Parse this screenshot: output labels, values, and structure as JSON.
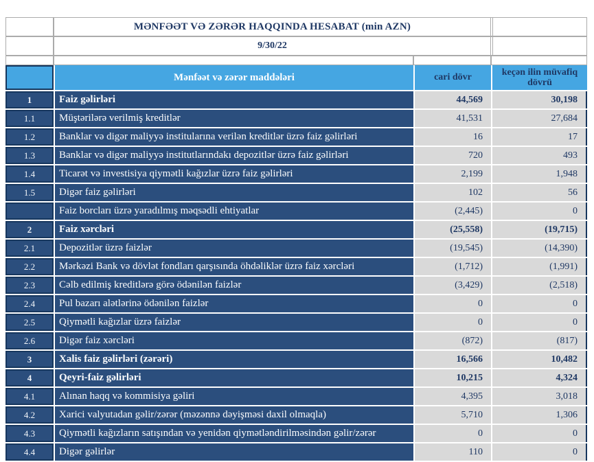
{
  "report": {
    "title": "MƏNFƏƏT VƏ ZƏRƏR HAQQINDA HESABAT (min AZN)",
    "date": "9/30/22"
  },
  "columns": {
    "items_header": "Mənfəət və zərər maddələri",
    "current_header": "cari dövr",
    "previous_header": "keçən ilin müvafiq dövrü"
  },
  "colors": {
    "header_blue": "#45A6E2",
    "row_navy": "#2B4E7D",
    "cell_gray": "#D9D9D9",
    "text_navy": "#1F3864",
    "border_dark": "#17375E",
    "border_gray": "#ABABAB"
  },
  "rows": [
    {
      "no": "1",
      "label": "Faiz  gəlirləri",
      "current": "44,569",
      "previous": "30,198",
      "bold": true
    },
    {
      "no": "1.1",
      "label": "Müştərilərə verilmiş kreditlər",
      "current": "41,531",
      "previous": "27,684",
      "bold": false
    },
    {
      "no": "1.2",
      "label": "Banklar və digər maliyyə institularına verilən kreditlər üzrə faiz gəlirləri",
      "current": "16",
      "previous": "17",
      "bold": false
    },
    {
      "no": "1.3",
      "label": "Banklar və digər maliyyə institutlarındakı depozitlər üzrə faiz gəlirləri",
      "current": "720",
      "previous": "493",
      "bold": false
    },
    {
      "no": "1.4",
      "label": "Ticarət və investisiya qiymətli kağızlar üzrə faiz gəlirləri",
      "current": "2,199",
      "previous": "1,948",
      "bold": false
    },
    {
      "no": "1.5",
      "label": "Digər faiz gəlirləri",
      "current": "102",
      "previous": "56",
      "bold": false
    },
    {
      "no": "",
      "label": "Faiz borcları üzrə yaradılmış məqsədli ehtiyatlar",
      "current": "(2,445)",
      "previous": "0",
      "bold": false
    },
    {
      "no": "2",
      "label": "Faiz xərcləri",
      "current": "(25,558)",
      "previous": "(19,715)",
      "bold": true
    },
    {
      "no": "2.1",
      "label": "Depozitlər üzrə faizlər",
      "current": "(19,545)",
      "previous": "(14,390)",
      "bold": false
    },
    {
      "no": "2.2",
      "label": "Mərkəzi Bank və dövlət fondları qarşısında öhdəliklər üzrə faiz xərcləri",
      "current": "(1,712)",
      "previous": "(1,991)",
      "bold": false
    },
    {
      "no": "2.3",
      "label": "Cəlb edilmiş kreditlərə görə ödənilən faizlər",
      "current": "(3,429)",
      "previous": "(2,518)",
      "bold": false
    },
    {
      "no": "2.4",
      "label": "Pul bazarı alətlərinə ödənilən faizlər",
      "current": "0",
      "previous": "0",
      "bold": false
    },
    {
      "no": "2.5",
      "label": "Qiymətli kağızlar üzrə faizlər",
      "current": "0",
      "previous": "0",
      "bold": false
    },
    {
      "no": "2.6",
      "label": "Digər faiz xərcləri",
      "current": "(872)",
      "previous": "(817)",
      "bold": false
    },
    {
      "no": "3",
      "label": "Xalis faiz gəlirləri (zərəri)",
      "current": "16,566",
      "previous": "10,482",
      "bold": true
    },
    {
      "no": "4",
      "label": "Qeyri-faiz gəlirləri",
      "current": "10,215",
      "previous": "4,324",
      "bold": true
    },
    {
      "no": "4.1",
      "label": "Alınan haqq və kommisiya gəliri",
      "current": "4,395",
      "previous": "3,018",
      "bold": false
    },
    {
      "no": "4.2",
      "label": "Xarici valyutadan gəlir/zərər (məzənnə dəyişməsi daxil olmaqla)",
      "current": "5,710",
      "previous": "1,306",
      "bold": false
    },
    {
      "no": "4.3",
      "label": "Qiymətli kağızların satışından və yenidən qiymətləndirilməsindən gəlir/zərər",
      "current": "0",
      "previous": "0",
      "bold": false
    },
    {
      "no": "4.4",
      "label": "Digər gəlirlər",
      "current": "110",
      "previous": "0",
      "bold": false
    }
  ]
}
